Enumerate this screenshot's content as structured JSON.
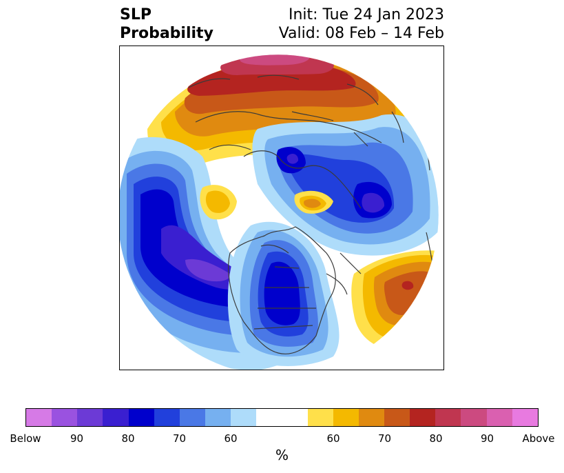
{
  "title": {
    "left_line1": "SLP",
    "left_line2": "Probability",
    "right_line1": "Init: Tue 24 Jan 2023",
    "right_line2": "Valid: 08 Feb – 14 Feb"
  },
  "colorbar": {
    "colors": [
      "#d67ae6",
      "#9a52e0",
      "#6c3ad6",
      "#3a1fd0",
      "#0000cc",
      "#2140dc",
      "#4a78e6",
      "#76b0f0",
      "#aedcfa",
      "#ffffff",
      "#ffe04a",
      "#f4b900",
      "#e08a10",
      "#c85818",
      "#b42420",
      "#c03650",
      "#cc4a80",
      "#da60b0",
      "#e87ae0"
    ],
    "tick_labels": [
      "Below",
      "90",
      "80",
      "70",
      "60",
      "60",
      "70",
      "80",
      "90",
      "Above"
    ],
    "unit": "%"
  },
  "map": {
    "projection": "north-polar-stereographic",
    "variable": "sea-level-pressure-probability",
    "regions": [
      {
        "name": "eurasia-above",
        "category": "above"
      },
      {
        "name": "north-pacific-below",
        "category": "below"
      },
      {
        "name": "north-america-below",
        "category": "below"
      },
      {
        "name": "north-atlantic-below",
        "category": "below"
      },
      {
        "name": "atlantic-above-core",
        "category": "above"
      },
      {
        "name": "arctic-below-core",
        "category": "below"
      }
    ]
  }
}
